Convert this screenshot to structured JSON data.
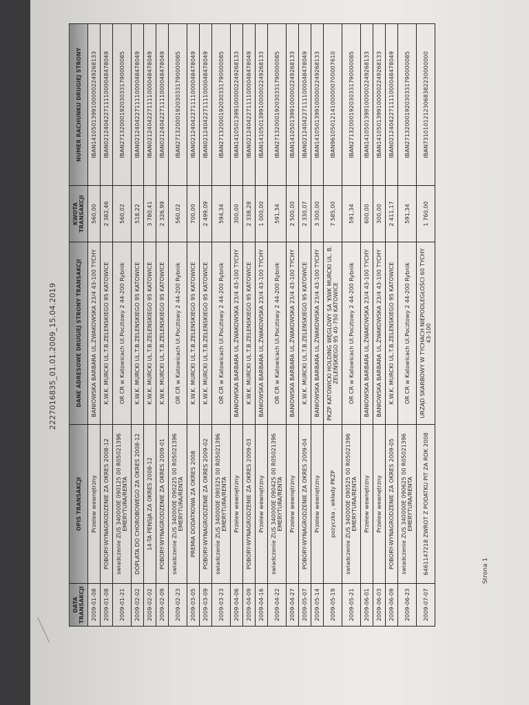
{
  "document": {
    "title": "2227016835_01.01.2009_15.04.2019",
    "footer": "Strona 1"
  },
  "table": {
    "headers": [
      "DATA TRANSAKCJI",
      "OPIS TRANSAKCJI",
      "DANE ADRESOWE DRUGIEJ STRONY TRANSAKCJI",
      "KWOTA TRANSAKCJI",
      "NUMER RACHUNKU DRUGIEJ STRONY"
    ],
    "rows": [
      {
        "date": "2009-01-08",
        "desc": "Przelew wewnętrzny",
        "party": "BANIOWSKA BARBARA UL.ŻWAKOWSKA 23/4 43-100 TYCHY",
        "amount": "560,00",
        "account": "IBAN14105013991000002249268133"
      },
      {
        "date": "2009-01-08",
        "desc": "POBORY-WYNAGRODZENIE ZA OKRES 2008-12",
        "party": "K.W.K. MURCKI UL.T.B.ZELENSKIEGO 95 KATOWICE",
        "amount": "2 382,46",
        "account": "IBAN02124042271111000048478049"
      },
      {
        "date": "2009-01-21",
        "desc": "swiadczenie ZUS 340000E 090125 00 R05021396 EMERYTURA/RENTA",
        "party": "OR CR w Katowicach Ul.Pocztowy 2 44-200 Rybnik",
        "amount": "560,02",
        "account": "IBAN27132000192030331790000085"
      },
      {
        "date": "2009-02-02",
        "desc": "DOPLATA DO CHOROBOWEGO ZA OKRES 2008-12",
        "party": "K.W.K. MURCKI UL.T.B.ZELENSKIEGO 95 KATOWICE",
        "amount": "518,22",
        "account": "IBAN02124042271111000048478049"
      },
      {
        "date": "2009-02-02",
        "desc": "14-TA PENSJA ZA OKRES 2008-12",
        "party": "K.W.K. MURCKI UL.T.B.ZELENSKIEGO 95 KATOWICE",
        "amount": "3 780,41",
        "account": "IBAN02124042271111000048478049"
      },
      {
        "date": "2009-02-09",
        "desc": "POBORY-WYNAGRODZENIE ZA OKRES 2009-01",
        "party": "K.W.K. MURCKI UL.T.B.ZELENSKIEGO 95 KATOWICE",
        "amount": "2 326,99",
        "account": "IBAN02124042271111000048478049"
      },
      {
        "date": "2009-02-23",
        "desc": "swiadczenie ZUS 340000E 090225 00 R05021396 EMERYTURA/RENTA",
        "party": "OR CR w Katowicach Ul.Pocztowy 2 44-200 Rybnik",
        "amount": "560,02",
        "account": "IBAN27132000192030331790000085"
      },
      {
        "date": "2009-03-05",
        "desc": "PREMIA DODATKOWA ZA OKRES 2008",
        "party": "K.W.K. MURCKI UL.T.B.ZELENSKIEGO 95 KATOWICE",
        "amount": "700,00",
        "account": "IBAN02124042271111000048478049"
      },
      {
        "date": "2009-03-09",
        "desc": "POBORY-WYNAGRODZENIE ZA OKRES 2009-02",
        "party": "K.W.K. MURCKI UL.T.B.ZELENSKIEGO 95 KATOWICE",
        "amount": "2 499,09",
        "account": "IBAN02124042271111000048478049"
      },
      {
        "date": "2009-03-23",
        "desc": "swiadczenie ZUS 340000E 090325 00 R05021396 EMERYTURA/RENTA",
        "party": "OR CR w Katowicach Ul.Pocztowy 2 44-200 Rybnik",
        "amount": "594,34",
        "account": "IBAN27132000192030331790000085"
      },
      {
        "date": "2009-04-06",
        "desc": "Przelew wewnętrzny",
        "party": "BANIOWSKA BARBARA UL.ŻWAKOWSKA 23/4 43-100 TYCHY",
        "amount": "300,00",
        "account": "IBAN14105013991000002249268133"
      },
      {
        "date": "2009-04-09",
        "desc": "POBORY-WYNAGRODZENIE ZA OKRES 2009-03",
        "party": "K.W.K. MURCKI UL.T.B.ZELENSKIEGO 95 KATOWICE",
        "amount": "2 338,28",
        "account": "IBAN02124042271111000048478049"
      },
      {
        "date": "2009-04-16",
        "desc": "Przelew wewnętrzny",
        "party": "BANIOWSKA BARBARA UL.ŻWAKOWSKA 23/4 43-100 TYCHY",
        "amount": "1 000,00",
        "account": "IBAN14105013991000002249268133"
      },
      {
        "date": "2009-04-22",
        "desc": "swiadczenie ZUS 340000E 090425 00 R05021396 EMERYTURA/RENTA",
        "party": "OR CR w Katowicach Ul.Pocztowy 2 44-200 Rybnik",
        "amount": "591,34",
        "account": "IBAN27132000192030331790000085"
      },
      {
        "date": "2009-04-27",
        "desc": "Przelew wewnętrzny",
        "party": "BANIOWSKA BARBARA UL.ŻWAKOWSKA 23/4 43-100 TYCHY",
        "amount": "2 500,00",
        "account": "IBAN14105013991000002249268133"
      },
      {
        "date": "2009-05-07",
        "desc": "POBORY-WYNAGRODZENIE ZA OKRES 2009-04",
        "party": "K.W.K. MURCKI UL.T.B.ZELENSKIEGO 95 KATOWICE",
        "amount": "2 330,07",
        "account": "IBAN02124042271111000048478049"
      },
      {
        "date": "2009-05-14",
        "desc": "Przelew wewnętrzny",
        "party": "BANIOWSKA BARBARA UL.ŻWAKOWSKA 23/4 43-100 TYCHY",
        "amount": "3 300,00",
        "account": "IBAN14105013991000002249268133"
      },
      {
        "date": "2009-05-19",
        "desc": "pozyczka , wkłady PKZP",
        "party": "PKZP KATOWICKI HOLDING WĘGLOWY SA 'KWK MURCKI UL. B. ZELEŃSKIEGO 95 40-750 KATOWICE",
        "amount": "7 585,00",
        "account": "IBAN96105012141000000700007610"
      },
      {
        "date": "2009-05-21",
        "desc": "swiadczenie ZUS 340000E 090525 00 R05021396 EMERYTURA/RENTA",
        "party": "OR CR w Katowicach Ul.Pocztowy 2 44-200 Rybnik",
        "amount": "591,34",
        "account": "IBAN27132000192030331790000085"
      },
      {
        "date": "2009-06-01",
        "desc": "Przelew wewnętrzny",
        "party": "BANIOWSKA BARBARA UL.ŻWAKOWSKA 23/4 43-100 TYCHY",
        "amount": "600,00",
        "account": "IBAN14105013991000002249268133"
      },
      {
        "date": "2009-06-03",
        "desc": "Przelew wewnętrzny",
        "party": "BANIOWSKA BARBARA UL.ŻWAKOWSKA 23/4 43-100 TYCHY",
        "amount": "300,00",
        "account": "IBAN14105013991000002249268133"
      },
      {
        "date": "2009-06-09",
        "desc": "POBORY-WYNAGRODZENIE ZA OKRES 2009-05",
        "party": "K.W.K. MURCKI UL.T.B.ZELENSKIEGO 95 KATOWICE",
        "amount": "2 411,17",
        "account": "IBAN02124042271111000048478049"
      },
      {
        "date": "2009-06-23",
        "desc": "swiadczenie ZUS 340000E 090625 00 R05021396 EMERYTURA/RENTA",
        "party": "OR CR w Katowicach Ul.Pocztowy 2 44-200 Rybnik",
        "amount": "591,34",
        "account": "IBAN27132000192030331790000085"
      },
      {
        "date": "2009-07-07",
        "desc": "6461147218 ZWROT Z PODATKU PIT ZA ROK 2008",
        "party": "URZĄD SKARBOWY W TYCHACH NIEPODLEGŁOŚCI 60 TYCHY 43-100",
        "amount": "1 760,00",
        "account": "IBAN73101012123068382230000000"
      }
    ]
  }
}
